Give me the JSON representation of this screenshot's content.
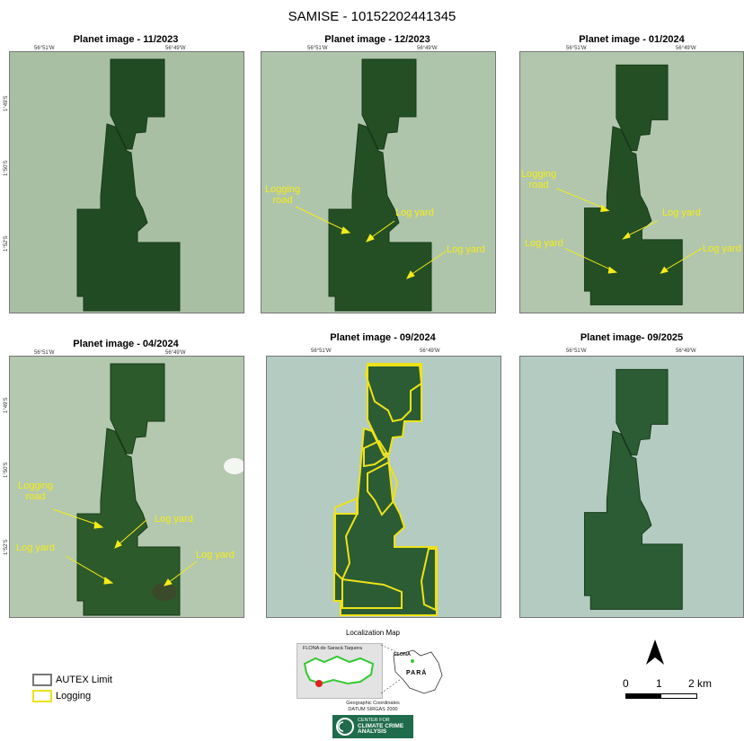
{
  "title": "SAMISE - 10152202441345",
  "panels": [
    {
      "title": "Planet image - 11/2023",
      "lon_left": "56°51'W",
      "lon_right": "56°49'W",
      "lat_top": "1°49'S",
      "lat_mid": "1°50'S",
      "lat_bot": "1°52'S",
      "annotations": []
    },
    {
      "title": "Planet image - 12/2023",
      "lon_left": "56°51'W",
      "lon_right": "56°49'W",
      "annotations": [
        "Logging road",
        "Log yard",
        "Log yard"
      ]
    },
    {
      "title": "Planet image - 01/2024",
      "lon_left": "56°51'W",
      "lon_right": "56°49'W",
      "annotations": [
        "Logging road",
        "Log yard",
        "Log yard",
        "Log yard"
      ]
    },
    {
      "title": "Planet image - 04/2024",
      "lon_left": "56°51'W",
      "lon_right": "56°49'W",
      "lat_top": "1°49'S",
      "lat_mid": "1°50'S",
      "lat_bot": "1°52'S",
      "annotations": [
        "Logging road",
        "Log yard",
        "Log yard",
        "Log yard"
      ]
    },
    {
      "title": "Planet image - 09/2024",
      "lon_left": "56°51'W",
      "lon_right": "56°49'W",
      "annotations": []
    },
    {
      "title": "Planet image- 09/2025",
      "lon_left": "56°51'W",
      "lon_right": "56°49'W",
      "annotations": []
    }
  ],
  "legend": {
    "autex": "AUTEX Limit",
    "logging": "Logging"
  },
  "locmap": {
    "title": "Localization Map",
    "flona_label": "FLONA de Saracá Taquera",
    "flona_short": "FLONA",
    "state": "PARÁ",
    "coords_line1": "Geographic Coordinates",
    "coords_line2": "DATUM SIRGAS 2000"
  },
  "scale": {
    "t0": "0",
    "t1": "1",
    "t2": "2 km"
  },
  "logo": {
    "line1": "CENTER FOR",
    "line2": "CLIMATE CRIME",
    "line3": "ANALYSIS"
  },
  "colors": {
    "forest": "#1f4a22",
    "background": "#a8bea2",
    "logging_line": "#ede21a",
    "annotation": "#f4ec1a"
  }
}
